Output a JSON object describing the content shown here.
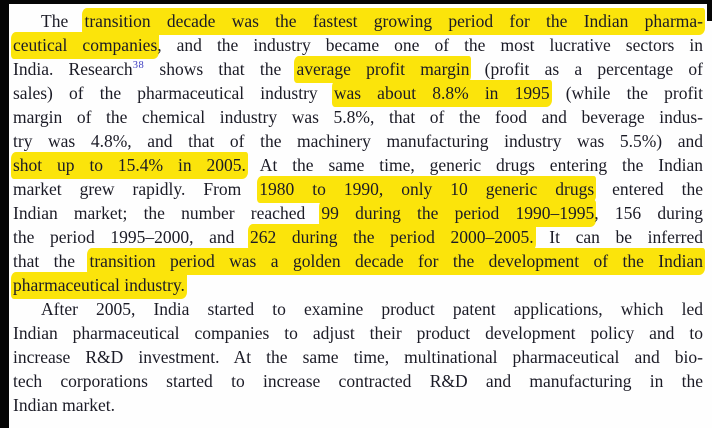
{
  "page": {
    "colors": {
      "paper": "#fefefe",
      "scan_edge": "#050505",
      "ink": "#1b1b26",
      "highlight": "#fbe40b",
      "footnote_ref": "#3c3cc0"
    }
  },
  "document": {
    "paragraphs": [
      {
        "indent": true,
        "lines": [
          {
            "segments": [
              {
                "text": "The ",
                "hl": false
              },
              {
                "text": "transition decade was the fastest growing period for the Indian pharma-",
                "hl": true
              }
            ]
          },
          {
            "segments": [
              {
                "text": "ceutical companies",
                "hl": true
              },
              {
                "text": ", and the industry became one of the most lucrative sectors in",
                "hl": false
              }
            ]
          },
          {
            "segments": [
              {
                "text": "India. Research",
                "hl": false
              },
              {
                "text": "38",
                "hl": false,
                "sup": true
              },
              {
                "text": " shows that the ",
                "hl": false
              },
              {
                "text": "average profit margin",
                "hl": true
              },
              {
                "text": " (profit as a percentage of",
                "hl": false
              }
            ]
          },
          {
            "segments": [
              {
                "text": "sales) of the pharmaceutical industry ",
                "hl": false
              },
              {
                "text": "was about 8.8% in 1995",
                "hl": true
              },
              {
                "text": " (while the profit",
                "hl": false
              }
            ]
          },
          {
            "segments": [
              {
                "text": "margin of the chemical industry was 5.8%, that of the food and beverage indus-",
                "hl": false
              }
            ]
          },
          {
            "segments": [
              {
                "text": "try was 4.8%, and that of the machinery manufacturing industry was 5.5%) and",
                "hl": false
              }
            ]
          },
          {
            "segments": [
              {
                "text": "shot up to 15.4% in 2005.",
                "hl": true
              },
              {
                "text": " At the same time, generic drugs entering the Indian",
                "hl": false
              }
            ]
          },
          {
            "segments": [
              {
                "text": "market grew rapidly. From ",
                "hl": false
              },
              {
                "text": "1980 to 1990, only 10 generic drugs",
                "hl": true
              },
              {
                "text": " entered the",
                "hl": false
              }
            ]
          },
          {
            "segments": [
              {
                "text": "Indian market; the number reached ",
                "hl": false
              },
              {
                "text": "99 during the period 1990–1995",
                "hl": true
              },
              {
                "text": ", 156 during",
                "hl": false
              }
            ]
          },
          {
            "segments": [
              {
                "text": "the period 1995–2000, and ",
                "hl": false
              },
              {
                "text": "262 during the period 2000–2005.",
                "hl": true
              },
              {
                "text": " It can be inferred",
                "hl": false
              }
            ]
          },
          {
            "segments": [
              {
                "text": "that the ",
                "hl": false
              },
              {
                "text": "transition period was a golden decade for the development of the Indian",
                "hl": true
              }
            ]
          },
          {
            "last": true,
            "segments": [
              {
                "text": "pharmaceutical industry.",
                "hl": true
              }
            ]
          }
        ]
      },
      {
        "indent": true,
        "lines": [
          {
            "segments": [
              {
                "text": "After 2005, India started to examine product patent applications, which led",
                "hl": false
              }
            ]
          },
          {
            "segments": [
              {
                "text": "Indian pharmaceutical companies to adjust their product development policy and to",
                "hl": false
              }
            ]
          },
          {
            "segments": [
              {
                "text": "increase R&D investment. At the same time, multinational pharmaceutical and bio-",
                "hl": false
              }
            ]
          },
          {
            "segments": [
              {
                "text": "tech corporations started to increase contracted R&D and manufacturing in the",
                "hl": false
              }
            ]
          },
          {
            "last": true,
            "segments": [
              {
                "text": "Indian market.",
                "hl": false
              }
            ]
          }
        ]
      }
    ]
  }
}
